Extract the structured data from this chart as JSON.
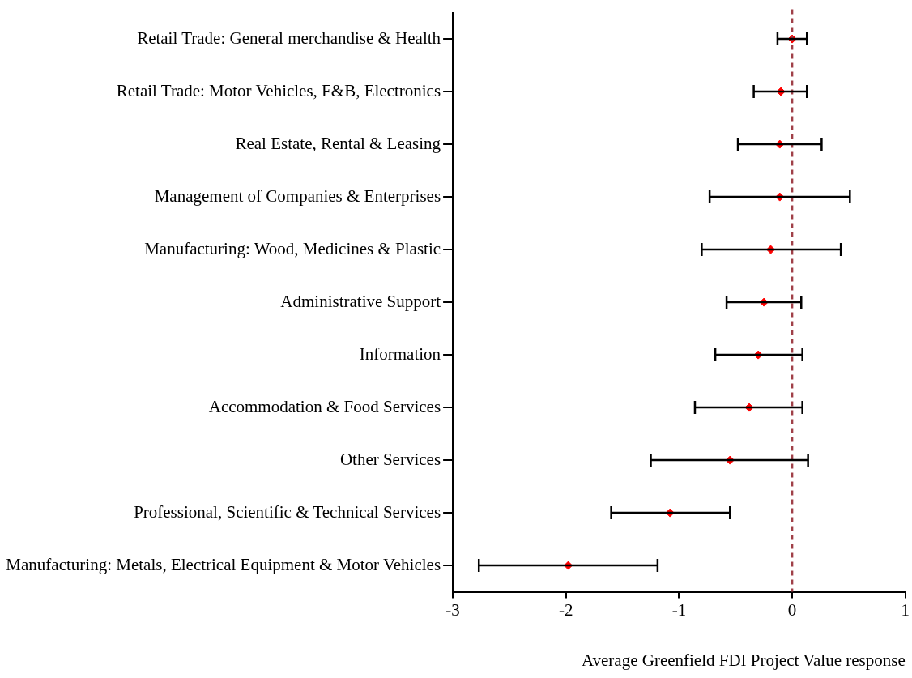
{
  "chart_data": {
    "type": "scatter",
    "orientation": "horizontal",
    "xlabel": "Average Greenfield FDI Project Value response",
    "categories": [
      "Retail Trade: General merchandise & Health",
      "Retail Trade: Motor Vehicles, F&B, Electronics",
      "Real Estate, Rental & Leasing",
      "Management of Companies & Enterprises",
      "Manufacturing: Wood, Medicines & Plastic",
      "Administrative Support",
      "Information",
      "Accommodation & Food Services",
      "Other Services",
      "Professional, Scientific & Technical Services",
      "Manufacturing: Metals, Electrical Equipment & Motor Vehicles"
    ],
    "values": [
      0.0,
      -0.1,
      -0.11,
      -0.11,
      -0.19,
      -0.25,
      -0.3,
      -0.38,
      -0.55,
      -1.08,
      -1.98
    ],
    "errors": [
      [
        -0.13,
        0.13
      ],
      [
        -0.34,
        0.13
      ],
      [
        -0.48,
        0.26
      ],
      [
        -0.73,
        0.51
      ],
      [
        -0.8,
        0.43
      ],
      [
        -0.58,
        0.08
      ],
      [
        -0.68,
        0.09
      ],
      [
        -0.86,
        0.09
      ],
      [
        -1.25,
        0.14
      ],
      [
        -1.6,
        -0.55
      ],
      [
        -2.77,
        -1.19
      ]
    ],
    "color": "#ff0000",
    "marker": "diamond",
    "xlim": [
      -3,
      1
    ],
    "xticks": [
      -3,
      -2,
      -1,
      0,
      1
    ],
    "ref_lines": [
      {
        "axis": "x",
        "value": 0,
        "color": "#a04048",
        "line_style": "dashed"
      }
    ]
  }
}
